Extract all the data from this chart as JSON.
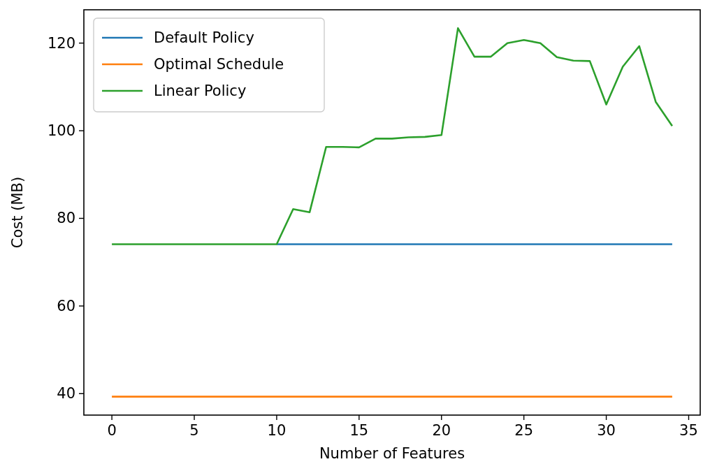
{
  "chart_data": {
    "type": "line",
    "xlabel": "Number of Features",
    "ylabel": "Cost (MB)",
    "x": [
      0,
      1,
      2,
      3,
      4,
      5,
      6,
      7,
      8,
      9,
      10,
      11,
      12,
      13,
      14,
      15,
      16,
      17,
      18,
      19,
      20,
      21,
      22,
      23,
      24,
      25,
      26,
      27,
      28,
      29,
      30,
      31,
      32,
      33,
      34
    ],
    "series": [
      {
        "name": "Default Policy",
        "color": "#1f77b4",
        "values": [
          null,
          null,
          null,
          null,
          null,
          null,
          null,
          null,
          null,
          null,
          74.1,
          74.1,
          74.1,
          74.1,
          74.1,
          74.1,
          74.1,
          74.1,
          74.1,
          74.1,
          74.1,
          74.1,
          74.1,
          74.1,
          74.1,
          74.1,
          74.1,
          74.1,
          74.1,
          74.1,
          74.1,
          74.1,
          74.1,
          74.1,
          74.1
        ]
      },
      {
        "name": "Optimal Schedule",
        "color": "#ff7f0e",
        "values": [
          39.3,
          39.3,
          39.3,
          39.3,
          39.3,
          39.3,
          39.3,
          39.3,
          39.3,
          39.3,
          39.3,
          39.3,
          39.3,
          39.3,
          39.3,
          39.3,
          39.3,
          39.3,
          39.3,
          39.3,
          39.3,
          39.3,
          39.3,
          39.3,
          39.3,
          39.3,
          39.3,
          39.3,
          39.3,
          39.3,
          39.3,
          39.3,
          39.3,
          39.3,
          39.3
        ]
      },
      {
        "name": "Linear Policy",
        "color": "#2ca02c",
        "values": [
          74.1,
          74.1,
          74.1,
          74.1,
          74.1,
          74.1,
          74.1,
          74.1,
          74.1,
          74.1,
          74.1,
          82.1,
          81.4,
          96.3,
          96.3,
          96.2,
          98.2,
          98.2,
          98.5,
          98.6,
          99.0,
          123.4,
          116.9,
          116.9,
          120.0,
          120.7,
          120.0,
          116.8,
          116.0,
          115.9,
          106.0,
          114.6,
          119.3,
          106.6,
          101.1
        ]
      }
    ],
    "xlim": [
      -1.7,
      35.7
    ],
    "ylim": [
      35.1,
      127.6
    ],
    "xticks": [
      0,
      5,
      10,
      15,
      20,
      25,
      30,
      35
    ],
    "yticks": [
      40,
      60,
      80,
      100,
      120
    ],
    "legend": "top left",
    "grid": false
  }
}
